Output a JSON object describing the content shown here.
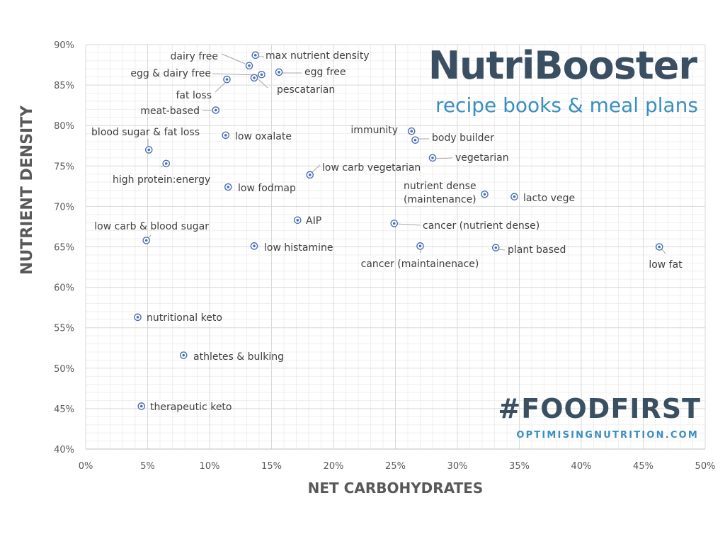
{
  "brand": {
    "title": "NutriBooster",
    "subtitle": "recipe books & meal plans",
    "hashtag": "#FOODFIRST",
    "website": "OPTIMISINGNUTRITION.COM",
    "colors": {
      "dark": "#3b4f63",
      "accent": "#3a8fbf",
      "marker": "#4a6fb5"
    }
  },
  "chart_data": {
    "type": "scatter",
    "xlabel": "NET CARBOHYDRATES",
    "ylabel": "NUTRIENT DENSITY",
    "xlim": [
      0,
      50
    ],
    "ylim": [
      40,
      90
    ],
    "x_ticks": [
      0,
      5,
      10,
      15,
      20,
      25,
      30,
      35,
      40,
      45,
      50
    ],
    "y_ticks": [
      40,
      45,
      50,
      55,
      60,
      65,
      70,
      75,
      80,
      85,
      90
    ],
    "x_tick_labels": [
      "0%",
      "5%",
      "10%",
      "15%",
      "20%",
      "25%",
      "30%",
      "35%",
      "40%",
      "45%",
      "50%"
    ],
    "y_tick_labels": [
      "40%",
      "45%",
      "50%",
      "55%",
      "60%",
      "65%",
      "70%",
      "75%",
      "80%",
      "85%",
      "90%"
    ],
    "grid": true,
    "legend": "none",
    "points": [
      {
        "label": "max nutrient density",
        "x": 13.7,
        "y": 88.7
      },
      {
        "label": "dairy free",
        "x": 13.2,
        "y": 87.4
      },
      {
        "label": "egg free",
        "x": 15.6,
        "y": 86.6
      },
      {
        "label": "egg & dairy free",
        "x": 14.2,
        "y": 86.3
      },
      {
        "label": "pescatarian",
        "x": 13.6,
        "y": 85.9
      },
      {
        "label": "fat loss",
        "x": 11.4,
        "y": 85.7
      },
      {
        "label": "meat-based",
        "x": 10.5,
        "y": 81.9
      },
      {
        "label": "low oxalate",
        "x": 11.3,
        "y": 78.8
      },
      {
        "label": "blood sugar & fat loss",
        "x": 5.1,
        "y": 77.0
      },
      {
        "label": "high protein:energy",
        "x": 6.5,
        "y": 75.3
      },
      {
        "label": "low fodmap",
        "x": 11.5,
        "y": 72.4
      },
      {
        "label": "low carb vegetarian",
        "x": 18.1,
        "y": 73.9
      },
      {
        "label": "immunity",
        "x": 26.3,
        "y": 79.3
      },
      {
        "label": "body builder",
        "x": 26.6,
        "y": 78.2
      },
      {
        "label": "vegetarian",
        "x": 28.0,
        "y": 76.0
      },
      {
        "label": "nutrient dense (maintenance)",
        "x": 32.2,
        "y": 71.5
      },
      {
        "label": "lacto vege",
        "x": 34.6,
        "y": 71.2
      },
      {
        "label": "AIP",
        "x": 17.1,
        "y": 68.3
      },
      {
        "label": "cancer (nutrient dense)",
        "x": 24.9,
        "y": 67.9
      },
      {
        "label": "low carb & blood sugar",
        "x": 4.9,
        "y": 65.8
      },
      {
        "label": "low histamine",
        "x": 13.6,
        "y": 65.1
      },
      {
        "label": "cancer (maintainenace)",
        "x": 27.0,
        "y": 65.1
      },
      {
        "label": "plant based",
        "x": 33.1,
        "y": 64.9
      },
      {
        "label": "low fat",
        "x": 46.3,
        "y": 65.0
      },
      {
        "label": "nutritional keto",
        "x": 4.2,
        "y": 56.3
      },
      {
        "label": "athletes & bulking",
        "x": 7.9,
        "y": 51.6
      },
      {
        "label": "therapeutic keto",
        "x": 4.5,
        "y": 45.3
      }
    ]
  }
}
